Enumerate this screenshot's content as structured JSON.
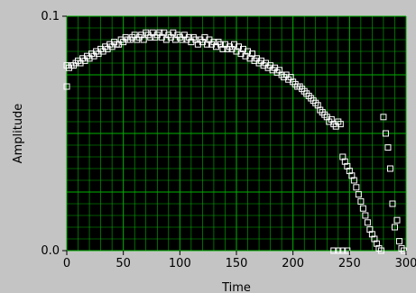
{
  "chart_data": {
    "type": "scatter",
    "xlabel": "Time",
    "ylabel": "Amplitude",
    "xlim": [
      0,
      300
    ],
    "ylim": [
      0.0,
      0.1
    ],
    "x_ticks": [
      "0",
      "50",
      "100",
      "150",
      "200",
      "250",
      "300"
    ],
    "y_ticks": [
      "0.0",
      "0.1"
    ],
    "grid": true,
    "colors": {
      "plot_bg": "#000000",
      "grid": "#00b200",
      "marker": "#ffffff",
      "frame": "#c4c4c4"
    },
    "series": [
      {
        "marker": "hollow-square",
        "points": [
          [
            0,
            0.07
          ],
          [
            0,
            0.079
          ],
          [
            2,
            0.078
          ],
          [
            4,
            0.079
          ],
          [
            6,
            0.079
          ],
          [
            8,
            0.08
          ],
          [
            10,
            0.081
          ],
          [
            12,
            0.08
          ],
          [
            14,
            0.082
          ],
          [
            16,
            0.081
          ],
          [
            18,
            0.083
          ],
          [
            20,
            0.082
          ],
          [
            22,
            0.084
          ],
          [
            24,
            0.083
          ],
          [
            26,
            0.085
          ],
          [
            28,
            0.084
          ],
          [
            30,
            0.086
          ],
          [
            32,
            0.085
          ],
          [
            34,
            0.087
          ],
          [
            36,
            0.086
          ],
          [
            38,
            0.088
          ],
          [
            40,
            0.087
          ],
          [
            42,
            0.089
          ],
          [
            44,
            0.088
          ],
          [
            46,
            0.088
          ],
          [
            48,
            0.09
          ],
          [
            50,
            0.089
          ],
          [
            52,
            0.091
          ],
          [
            54,
            0.09
          ],
          [
            56,
            0.09
          ],
          [
            58,
            0.091
          ],
          [
            60,
            0.092
          ],
          [
            62,
            0.09
          ],
          [
            64,
            0.091
          ],
          [
            66,
            0.092
          ],
          [
            68,
            0.09
          ],
          [
            70,
            0.093
          ],
          [
            72,
            0.092
          ],
          [
            74,
            0.091
          ],
          [
            76,
            0.093
          ],
          [
            78,
            0.091
          ],
          [
            80,
            0.092
          ],
          [
            82,
            0.093
          ],
          [
            84,
            0.091
          ],
          [
            86,
            0.093
          ],
          [
            88,
            0.09
          ],
          [
            90,
            0.092
          ],
          [
            92,
            0.091
          ],
          [
            94,
            0.093
          ],
          [
            96,
            0.09
          ],
          [
            98,
            0.092
          ],
          [
            100,
            0.091
          ],
          [
            102,
            0.09
          ],
          [
            104,
            0.092
          ],
          [
            106,
            0.09
          ],
          [
            108,
            0.091
          ],
          [
            110,
            0.089
          ],
          [
            112,
            0.091
          ],
          [
            114,
            0.09
          ],
          [
            116,
            0.088
          ],
          [
            118,
            0.09
          ],
          [
            120,
            0.089
          ],
          [
            122,
            0.091
          ],
          [
            124,
            0.088
          ],
          [
            126,
            0.09
          ],
          [
            128,
            0.088
          ],
          [
            130,
            0.089
          ],
          [
            132,
            0.087
          ],
          [
            134,
            0.089
          ],
          [
            136,
            0.088
          ],
          [
            138,
            0.086
          ],
          [
            140,
            0.088
          ],
          [
            142,
            0.086
          ],
          [
            144,
            0.087
          ],
          [
            146,
            0.086
          ],
          [
            148,
            0.088
          ],
          [
            150,
            0.085
          ],
          [
            152,
            0.087
          ],
          [
            154,
            0.084
          ],
          [
            156,
            0.086
          ],
          [
            158,
            0.083
          ],
          [
            160,
            0.085
          ],
          [
            162,
            0.082
          ],
          [
            164,
            0.084
          ],
          [
            166,
            0.081
          ],
          [
            168,
            0.082
          ],
          [
            170,
            0.08
          ],
          [
            172,
            0.081
          ],
          [
            174,
            0.079
          ],
          [
            176,
            0.08
          ],
          [
            178,
            0.078
          ],
          [
            180,
            0.079
          ],
          [
            182,
            0.077
          ],
          [
            184,
            0.078
          ],
          [
            186,
            0.076
          ],
          [
            188,
            0.077
          ],
          [
            190,
            0.075
          ],
          [
            192,
            0.074
          ],
          [
            194,
            0.075
          ],
          [
            196,
            0.073
          ],
          [
            198,
            0.074
          ],
          [
            200,
            0.072
          ],
          [
            202,
            0.071
          ],
          [
            204,
            0.07
          ],
          [
            206,
            0.07
          ],
          [
            208,
            0.069
          ],
          [
            210,
            0.068
          ],
          [
            212,
            0.067
          ],
          [
            214,
            0.066
          ],
          [
            216,
            0.065
          ],
          [
            218,
            0.064
          ],
          [
            220,
            0.063
          ],
          [
            222,
            0.062
          ],
          [
            224,
            0.06
          ],
          [
            226,
            0.059
          ],
          [
            228,
            0.058
          ],
          [
            230,
            0.057
          ],
          [
            232,
            0.055
          ],
          [
            234,
            0.056
          ],
          [
            236,
            0.054
          ],
          [
            238,
            0.053
          ],
          [
            240,
            0.055
          ],
          [
            242,
            0.054
          ],
          [
            244,
            0.04
          ],
          [
            246,
            0.038
          ],
          [
            248,
            0.036
          ],
          [
            250,
            0.034
          ],
          [
            252,
            0.032
          ],
          [
            254,
            0.03
          ],
          [
            256,
            0.027
          ],
          [
            258,
            0.024
          ],
          [
            260,
            0.021
          ],
          [
            262,
            0.018
          ],
          [
            264,
            0.015
          ],
          [
            266,
            0.012
          ],
          [
            268,
            0.009
          ],
          [
            270,
            0.007
          ],
          [
            272,
            0.005
          ],
          [
            274,
            0.003
          ],
          [
            276,
            0.001
          ],
          [
            278,
            0.0
          ],
          [
            280,
            0.057
          ],
          [
            282,
            0.05
          ],
          [
            284,
            0.044
          ],
          [
            286,
            0.035
          ],
          [
            288,
            0.02
          ],
          [
            290,
            0.01
          ],
          [
            292,
            0.013
          ],
          [
            294,
            0.004
          ],
          [
            296,
            0.001
          ],
          [
            298,
            0.0
          ],
          [
            236,
            0.0
          ],
          [
            240,
            0.0
          ],
          [
            244,
            0.0
          ],
          [
            248,
            0.0
          ]
        ]
      }
    ]
  }
}
